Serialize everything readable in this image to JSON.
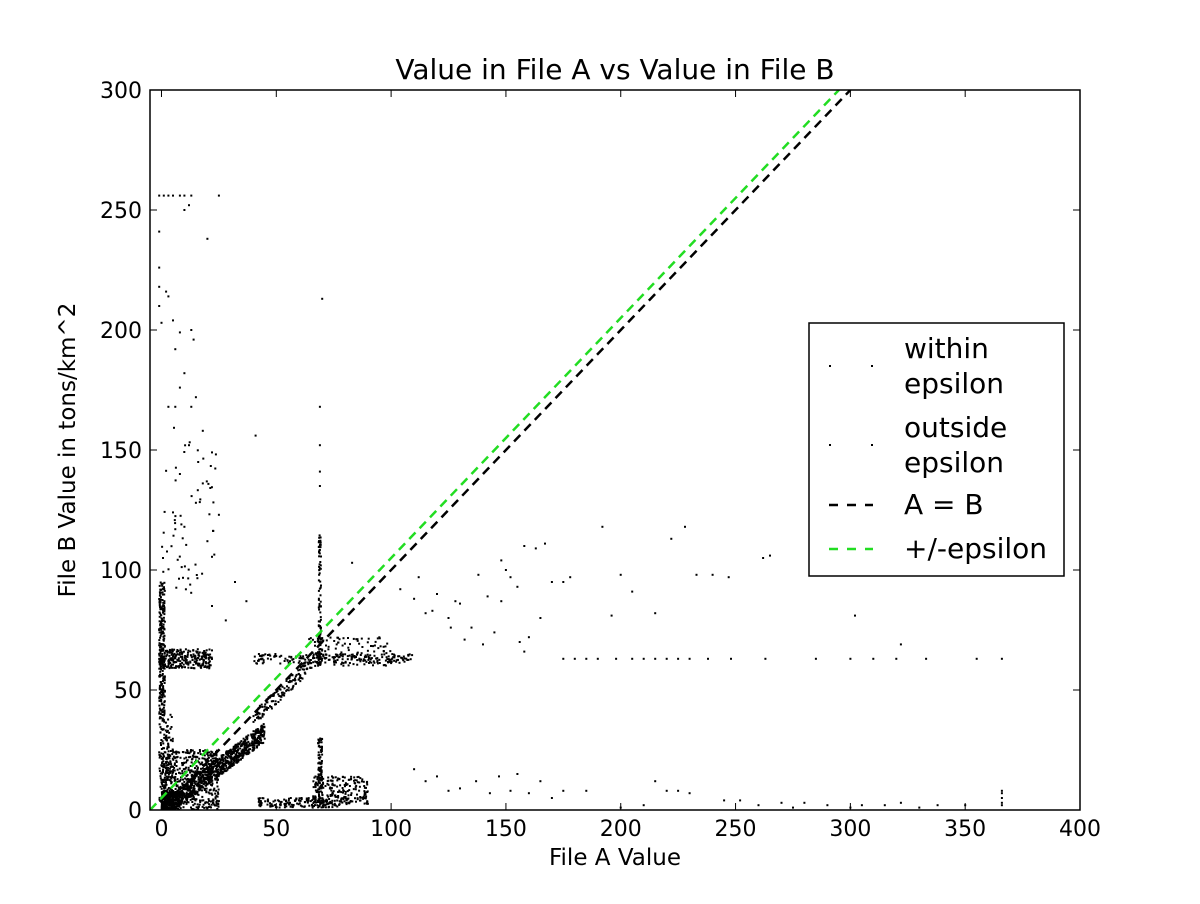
{
  "chart_data": {
    "type": "scatter",
    "title": "Value in File A vs Value in File B",
    "xlabel": "File A Value",
    "ylabel": "File B Value in tons/km^2",
    "xlim": [
      -5,
      400
    ],
    "ylim": [
      0,
      300
    ],
    "x_ticks": [
      0,
      50,
      100,
      150,
      200,
      250,
      300,
      350,
      400
    ],
    "y_ticks": [
      0,
      50,
      100,
      150,
      200,
      250,
      300
    ],
    "x_tick_labels": [
      "0",
      "50",
      "100",
      "150",
      "200",
      "250",
      "300",
      "350",
      "400"
    ],
    "y_tick_labels": [
      "0",
      "50",
      "100",
      "150",
      "200",
      "250",
      "300"
    ],
    "grid": false,
    "legend_position": "center-right",
    "legend": [
      {
        "label_lines": [
          "within",
          "epsilon"
        ],
        "marker": "point",
        "color": "#000000"
      },
      {
        "label_lines": [
          "outside",
          "epsilon"
        ],
        "marker": "point",
        "color": "#000000"
      },
      {
        "label_lines": [
          "A = B"
        ],
        "marker": "dashed-line",
        "color": "#000000"
      },
      {
        "label_lines": [
          "+/-epsilon"
        ],
        "marker": "dashed-line",
        "color": "#22dd22"
      }
    ],
    "series": [
      {
        "name": "within epsilon",
        "kind": "points",
        "color": "#000000",
        "clusters": [
          {
            "x": [
              0,
              45
            ],
            "y_slope": 0.72,
            "y_offset": 0,
            "y_jitter": 4,
            "count": 900
          },
          {
            "x": [
              0,
              25
            ],
            "y": [
              0,
              25
            ],
            "count": 500
          },
          {
            "x": [
              0,
              8
            ],
            "y": [
              0,
              8
            ],
            "count": 200
          },
          {
            "x": [
              40,
              70
            ],
            "y_slope": 0.9,
            "y_offset": 2,
            "y_jitter": 3,
            "count": 160
          }
        ],
        "points": [
          [
            5,
            18
          ],
          [
            12,
            22
          ],
          [
            20,
            24
          ],
          [
            28,
            22
          ],
          [
            35,
            27
          ],
          [
            42,
            30
          ],
          [
            8,
            12
          ],
          [
            15,
            14
          ],
          [
            22,
            16
          ]
        ]
      },
      {
        "name": "outside epsilon",
        "kind": "points",
        "color": "#000000",
        "clusters": [
          {
            "x": [
              -1,
              1.5
            ],
            "y": [
              38,
              95
            ],
            "count": 260
          },
          {
            "x": [
              -1,
              22
            ],
            "y": [
              59,
              67
            ],
            "count": 260
          },
          {
            "x": [
              40,
              110
            ],
            "y": [
              61,
              65
            ],
            "count": 180
          },
          {
            "x": [
              42,
              78
            ],
            "y": [
              1,
              5
            ],
            "count": 140
          },
          {
            "x": [
              66,
              90
            ],
            "y": [
              2,
              14
            ],
            "count": 220
          },
          {
            "x": [
              68,
              70
            ],
            "y": [
              1,
              30
            ],
            "count": 100
          },
          {
            "x": [
              68.5,
              69.5
            ],
            "y": [
              60,
              115
            ],
            "count": 90
          },
          {
            "x": [
              64,
              100
            ],
            "y": [
              60,
              72
            ],
            "count": 120
          },
          {
            "x": [
              -1,
              5
            ],
            "y": [
              0,
              40
            ],
            "count": 150
          },
          {
            "x": [
              0,
              25
            ],
            "y": [
              90,
              160
            ],
            "count": 60
          }
        ],
        "points": [
          [
            -1,
            256
          ],
          [
            1,
            256
          ],
          [
            3,
            256
          ],
          [
            5,
            256
          ],
          [
            8,
            256
          ],
          [
            10,
            256
          ],
          [
            13,
            256
          ],
          [
            25,
            256
          ],
          [
            -1,
            241
          ],
          [
            -1,
            226
          ],
          [
            -1,
            218
          ],
          [
            -1,
            210
          ],
          [
            0,
            203
          ],
          [
            2,
            216
          ],
          [
            3,
            214
          ],
          [
            10,
            250
          ],
          [
            12,
            252
          ],
          [
            20,
            238
          ],
          [
            5,
            204
          ],
          [
            8,
            199
          ],
          [
            13,
            200
          ],
          [
            14,
            196
          ],
          [
            6,
            192
          ],
          [
            10,
            182
          ],
          [
            3,
            168
          ],
          [
            6,
            168
          ],
          [
            8,
            176
          ],
          [
            13,
            168
          ],
          [
            15,
            172
          ],
          [
            18,
            158
          ],
          [
            22,
            149
          ],
          [
            41,
            156
          ],
          [
            70,
            213
          ],
          [
            69,
            168
          ],
          [
            69,
            152
          ],
          [
            69,
            141
          ],
          [
            69,
            135
          ],
          [
            12,
            152
          ],
          [
            16,
            145
          ],
          [
            8,
            140
          ],
          [
            5,
            124
          ],
          [
            10,
            118
          ],
          [
            15,
            128
          ],
          [
            20,
            112
          ],
          [
            25,
            123
          ],
          [
            32,
            95
          ],
          [
            37,
            87
          ],
          [
            22,
            85
          ],
          [
            28,
            79
          ],
          [
            83,
            103
          ],
          [
            95,
            100
          ],
          [
            104,
            92
          ],
          [
            110,
            88
          ],
          [
            112,
            97
          ],
          [
            118,
            83
          ],
          [
            125,
            80
          ],
          [
            130,
            86
          ],
          [
            135,
            76
          ],
          [
            138,
            98
          ],
          [
            142,
            89
          ],
          [
            148,
            104
          ],
          [
            150,
            100
          ],
          [
            152,
            97
          ],
          [
            155,
            93
          ],
          [
            158,
            110
          ],
          [
            163,
            109
          ],
          [
            167,
            111
          ],
          [
            170,
            95
          ],
          [
            175,
            95
          ],
          [
            158,
            66
          ],
          [
            156,
            70
          ],
          [
            160,
            72
          ],
          [
            165,
            80
          ],
          [
            145,
            74
          ],
          [
            132,
            71
          ],
          [
            126,
            76
          ],
          [
            140,
            69
          ],
          [
            115,
            82
          ],
          [
            178,
            97
          ],
          [
            192,
            118
          ],
          [
            196,
            81
          ],
          [
            200,
            98
          ],
          [
            205,
            91
          ],
          [
            215,
            82
          ],
          [
            222,
            113
          ],
          [
            228,
            118
          ],
          [
            233,
            98
          ],
          [
            240,
            98
          ],
          [
            247,
            97
          ],
          [
            262,
            105
          ],
          [
            265,
            106
          ],
          [
            302,
            81
          ],
          [
            175,
            63
          ],
          [
            180,
            63
          ],
          [
            185,
            63
          ],
          [
            190,
            63
          ],
          [
            198,
            63
          ],
          [
            205,
            63
          ],
          [
            210,
            63
          ],
          [
            215,
            63
          ],
          [
            220,
            63
          ],
          [
            225,
            63
          ],
          [
            230,
            63
          ],
          [
            238,
            63
          ],
          [
            248,
            63
          ],
          [
            263,
            63
          ],
          [
            285,
            63
          ],
          [
            300,
            63
          ],
          [
            310,
            63
          ],
          [
            320,
            63
          ],
          [
            333,
            63
          ],
          [
            355,
            63
          ],
          [
            366,
            63
          ],
          [
            322,
            69
          ],
          [
            110,
            17
          ],
          [
            115,
            12
          ],
          [
            120,
            14
          ],
          [
            125,
            8
          ],
          [
            130,
            9
          ],
          [
            137,
            12
          ],
          [
            143,
            7
          ],
          [
            147,
            14
          ],
          [
            152,
            8
          ],
          [
            155,
            15
          ],
          [
            160,
            7
          ],
          [
            165,
            12
          ],
          [
            170,
            5
          ],
          [
            175,
            8
          ],
          [
            185,
            8
          ],
          [
            215,
            12
          ],
          [
            220,
            8
          ],
          [
            225,
            8
          ],
          [
            230,
            7
          ],
          [
            245,
            4
          ],
          [
            252,
            4
          ],
          [
            260,
            2
          ],
          [
            275,
            1
          ],
          [
            290,
            2
          ],
          [
            305,
            2
          ],
          [
            322,
            3
          ],
          [
            338,
            2
          ],
          [
            350,
            2
          ],
          [
            366,
            8
          ],
          [
            366,
            7
          ],
          [
            366,
            5
          ],
          [
            366,
            3
          ],
          [
            366,
            2
          ],
          [
            200,
            1
          ],
          [
            210,
            2
          ],
          [
            270,
            3
          ],
          [
            280,
            3
          ],
          [
            300,
            1
          ],
          [
            315,
            2
          ],
          [
            330,
            1
          ],
          [
            120,
            90
          ],
          [
            128,
            87
          ],
          [
            148,
            87
          ]
        ]
      },
      {
        "name": "A = B",
        "kind": "dashed-line",
        "color": "#000000",
        "x": [
          0,
          300
        ],
        "y": [
          0,
          300
        ]
      },
      {
        "name": "+/-epsilon",
        "kind": "dashed-line",
        "color": "#22dd22",
        "x": [
          -5,
          295
        ],
        "y": [
          0,
          300
        ]
      }
    ]
  }
}
